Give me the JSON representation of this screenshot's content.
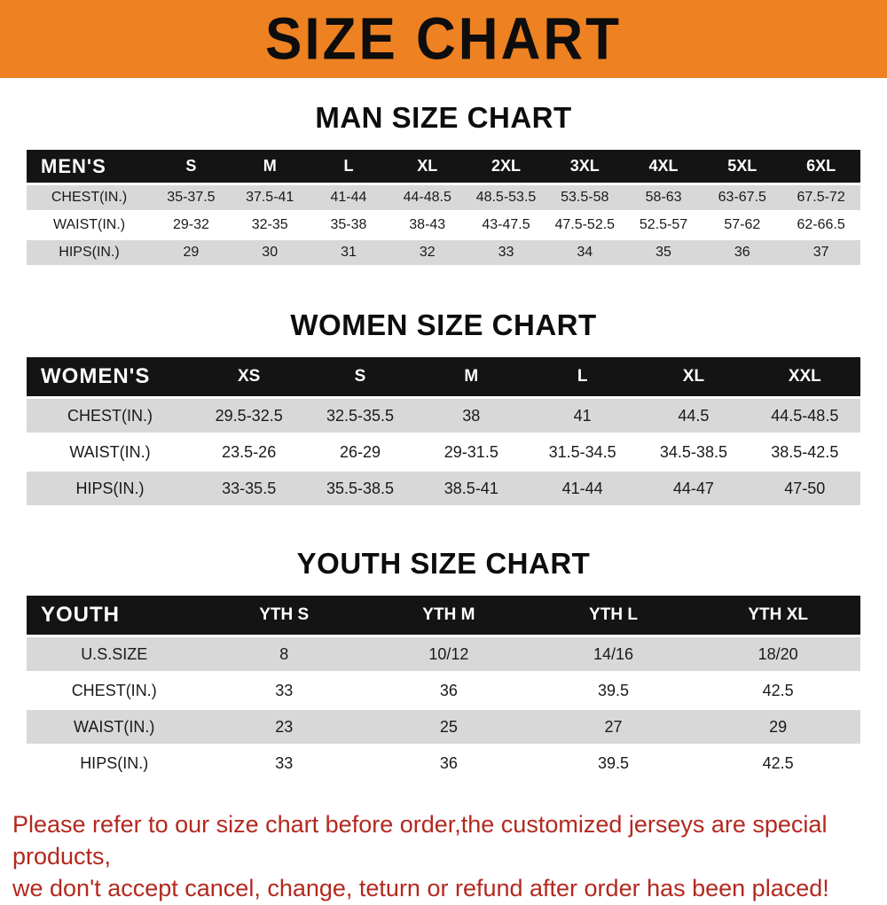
{
  "banner": {
    "title": "SIZE CHART"
  },
  "colors": {
    "banner_bg": "#ee8122",
    "banner_text": "#0d0d0d",
    "table_header_bg": "#141414",
    "table_header_text": "#ffffff",
    "row_alt_bg": "#d8d8d8",
    "footer_text": "#b3291f"
  },
  "chart_data": [
    {
      "type": "table",
      "title": "MAN SIZE CHART",
      "header": [
        "MEN'S",
        "S",
        "M",
        "L",
        "XL",
        "2XL",
        "3XL",
        "4XL",
        "5XL",
        "6XL"
      ],
      "rows": [
        [
          "CHEST(IN.)",
          "35-37.5",
          "37.5-41",
          "41-44",
          "44-48.5",
          "48.5-53.5",
          "53.5-58",
          "58-63",
          "63-67.5",
          "67.5-72"
        ],
        [
          "WAIST(IN.)",
          "29-32",
          "32-35",
          "35-38",
          "38-43",
          "43-47.5",
          "47.5-52.5",
          "52.5-57",
          "57-62",
          "62-66.5"
        ],
        [
          "HIPS(IN.)",
          "29",
          "30",
          "31",
          "32",
          "33",
          "34",
          "35",
          "36",
          "37"
        ]
      ]
    },
    {
      "type": "table",
      "title": "WOMEN SIZE CHART",
      "header": [
        "WOMEN'S",
        "XS",
        "S",
        "M",
        "L",
        "XL",
        "XXL"
      ],
      "rows": [
        [
          "CHEST(IN.)",
          "29.5-32.5",
          "32.5-35.5",
          "38",
          "41",
          "44.5",
          "44.5-48.5"
        ],
        [
          "WAIST(IN.)",
          "23.5-26",
          "26-29",
          "29-31.5",
          "31.5-34.5",
          "34.5-38.5",
          "38.5-42.5"
        ],
        [
          "HIPS(IN.)",
          "33-35.5",
          "35.5-38.5",
          "38.5-41",
          "41-44",
          "44-47",
          "47-50"
        ]
      ]
    },
    {
      "type": "table",
      "title": "YOUTH SIZE CHART",
      "header": [
        "YOUTH",
        "YTH S",
        "YTH M",
        "YTH L",
        "YTH XL"
      ],
      "rows": [
        [
          "U.S.SIZE",
          "8",
          "10/12",
          "14/16",
          "18/20"
        ],
        [
          "CHEST(IN.)",
          "33",
          "36",
          "39.5",
          "42.5"
        ],
        [
          "WAIST(IN.)",
          "23",
          "25",
          "27",
          "29"
        ],
        [
          "HIPS(IN.)",
          "33",
          "36",
          "39.5",
          "42.5"
        ]
      ]
    }
  ],
  "footer": {
    "line1": "Please refer to our size chart before order,the customized jerseys are special products,",
    "line2": "we don't accept cancel, change, teturn or refund after order has been placed!"
  }
}
